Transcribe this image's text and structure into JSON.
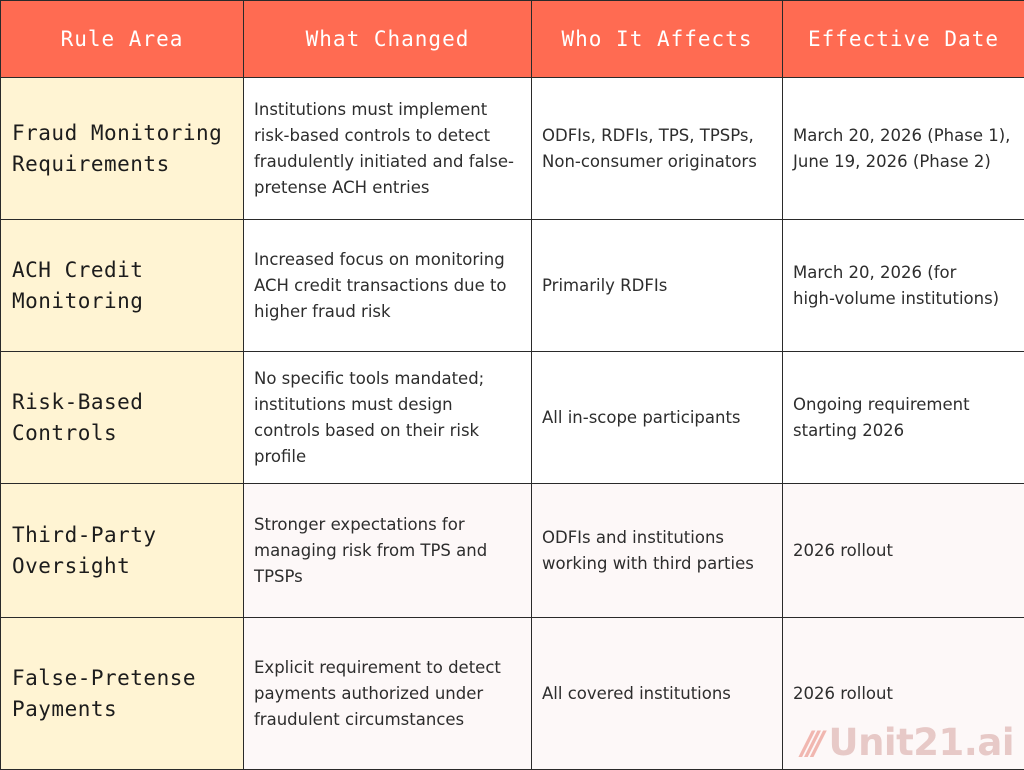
{
  "table": {
    "headers": [
      "Rule Area",
      "What Changed",
      "Who It Affects",
      "Effective Date"
    ],
    "rows": [
      {
        "area": [
          "Fraud Monitoring",
          "Requirements"
        ],
        "changed": [
          "Institutions must implement",
          "risk-based controls to detect",
          "fraudulently initiated and false-",
          "pretense ACH entries"
        ],
        "affects": [
          "ODFIs, RDFIs, TPS, TPSPs,",
          "Non-consumer originators"
        ],
        "date": [
          "March 20, 2026 (Phase 1),",
          "June 19, 2026 (Phase 2)"
        ]
      },
      {
        "area": [
          "ACH Credit",
          "Monitoring"
        ],
        "changed": [
          "Increased focus on monitoring",
          "ACH credit transactions due to",
          "higher fraud risk"
        ],
        "affects": [
          "Primarily RDFIs"
        ],
        "date": [
          "March 20, 2026 (for",
          "high-volume institutions)"
        ]
      },
      {
        "area": [
          "Risk-Based",
          "Controls"
        ],
        "changed": [
          "No specific tools mandated;",
          "institutions must design",
          "controls based on their risk",
          "profile"
        ],
        "affects": [
          "All in-scope participants"
        ],
        "date": [
          "Ongoing requirement",
          "starting 2026"
        ]
      },
      {
        "area": [
          "Third-Party",
          "Oversight"
        ],
        "changed": [
          "Stronger expectations for",
          "managing risk from TPS and",
          "TPSPs"
        ],
        "affects": [
          "ODFIs and institutions",
          "working with third parties"
        ],
        "date": [
          "2026 rollout"
        ]
      },
      {
        "area": [
          "False-Pretense",
          "Payments"
        ],
        "changed": [
          "Explicit requirement to detect",
          "payments authorized under",
          "fraudulent circumstances"
        ],
        "affects": [
          "All covered institutions"
        ],
        "date": [
          "2026 rollout"
        ]
      }
    ]
  },
  "watermark": {
    "mark": "///",
    "text": "Unit21.ai"
  },
  "colors": {
    "header": "#ff6b52",
    "area_column": "#fff4d3",
    "border": "#2a2a2a",
    "watermark": "#e7c9c7"
  }
}
